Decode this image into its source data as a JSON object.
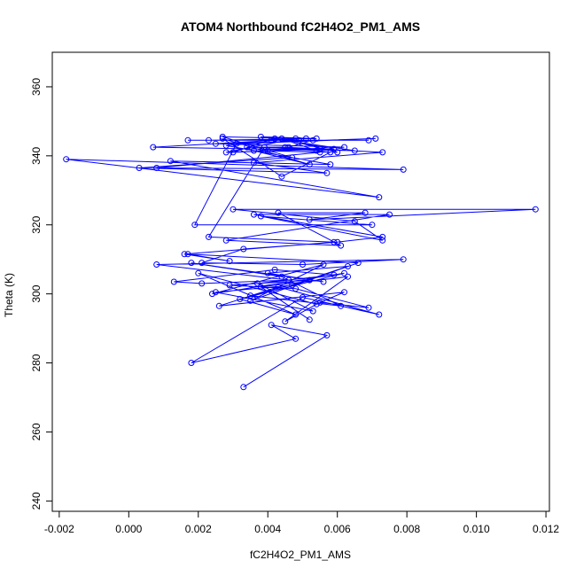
{
  "chart_data": {
    "type": "scatter",
    "title": "ATOM4 Northbound fC2H4O2_PM1_AMS",
    "xlabel": "fC2H4O2_PM1_AMS",
    "ylabel": "Theta (K)",
    "xlim": [
      -0.0022,
      0.0121
    ],
    "ylim": [
      237,
      370
    ],
    "xticks": [
      -0.002,
      0.0,
      0.002,
      0.004,
      0.006,
      0.008,
      0.01,
      0.012
    ],
    "xtick_labels": [
      "-0.002",
      "0.000",
      "0.002",
      "0.004",
      "0.006",
      "0.008",
      "0.010",
      "0.012"
    ],
    "yticks": [
      240,
      260,
      280,
      300,
      320,
      340,
      360
    ],
    "ytick_labels": [
      "240",
      "260",
      "280",
      "300",
      "320",
      "340",
      "360"
    ],
    "grid": false,
    "colors": {
      "series": "#0000ff",
      "frame": "#000000"
    },
    "series": [
      {
        "style": "points-and-lines",
        "points": [
          [
            0.0033,
            273.0
          ],
          [
            0.0057,
            288.0
          ],
          [
            0.0041,
            291.0
          ],
          [
            0.0048,
            287.0
          ],
          [
            0.0018,
            280.0
          ],
          [
            0.005,
            299.0
          ],
          [
            0.0072,
            294.0
          ],
          [
            0.0043,
            302.0
          ],
          [
            0.0026,
            296.5
          ],
          [
            0.0062,
            300.5
          ],
          [
            0.0055,
            297.5
          ],
          [
            0.0069,
            296.0
          ],
          [
            0.0048,
            301.5
          ],
          [
            0.0029,
            302.5
          ],
          [
            0.0052,
            304.0
          ],
          [
            0.0035,
            299.5
          ],
          [
            0.0061,
            296.5
          ],
          [
            0.0044,
            305.0
          ],
          [
            0.0018,
            309.0
          ],
          [
            0.0056,
            303.5
          ],
          [
            0.004,
            306.0
          ],
          [
            0.0063,
            308.0
          ],
          [
            0.0047,
            302.5
          ],
          [
            0.0025,
            300.5
          ],
          [
            0.0053,
            295.0
          ],
          [
            0.0037,
            303.0
          ],
          [
            0.0059,
            305.5
          ],
          [
            0.0042,
            307.0
          ],
          [
            0.0013,
            303.5
          ],
          [
            0.0021,
            303.0
          ],
          [
            0.0046,
            304.0
          ],
          [
            0.0008,
            308.5
          ],
          [
            0.0079,
            310.0
          ],
          [
            0.005,
            308.5
          ],
          [
            0.0021,
            309.0
          ],
          [
            0.0033,
            313.0
          ],
          [
            0.006,
            315.0
          ],
          [
            0.0073,
            316.5
          ],
          [
            0.0036,
            323.0
          ],
          [
            0.0075,
            323.0
          ],
          [
            0.0028,
            315.5
          ],
          [
            0.0061,
            314.0
          ],
          [
            0.0043,
            323.5
          ],
          [
            0.0068,
            323.5
          ],
          [
            0.0052,
            321.5
          ],
          [
            0.0117,
            324.5
          ],
          [
            0.003,
            324.5
          ],
          [
            0.0065,
            321.0
          ],
          [
            0.0073,
            315.5
          ],
          [
            0.0038,
            322.5
          ],
          [
            0.007,
            320.0
          ],
          [
            0.0019,
            320.0
          ],
          [
            0.0031,
            343.5
          ],
          [
            0.0071,
            345.0
          ],
          [
            0.0025,
            343.5
          ],
          [
            0.0062,
            342.5
          ],
          [
            0.004,
            341.5
          ],
          [
            0.0055,
            341.0
          ],
          [
            0.0008,
            336.5
          ],
          [
            0.0079,
            336.0
          ],
          [
            -0.0018,
            339.0
          ],
          [
            0.0072,
            328.0
          ],
          [
            0.0012,
            338.5
          ],
          [
            0.0058,
            337.5
          ],
          [
            0.0028,
            343.0
          ],
          [
            0.0049,
            344.5
          ],
          [
            0.0017,
            344.5
          ],
          [
            0.0069,
            344.5
          ],
          [
            0.0023,
            344.5
          ],
          [
            0.0054,
            345.0
          ],
          [
            0.0038,
            345.5
          ],
          [
            0.0065,
            341.5
          ],
          [
            0.0007,
            342.5
          ],
          [
            0.0051,
            345.0
          ],
          [
            0.0027,
            345.5
          ],
          [
            0.0047,
            339.5
          ],
          [
            0.0003,
            336.5
          ],
          [
            0.0057,
            335.0
          ],
          [
            0.0036,
            338.0
          ],
          [
            0.0073,
            341.0
          ],
          [
            0.0045,
            342.5
          ],
          [
            0.0034,
            342.5
          ],
          [
            0.0055,
            342.0
          ],
          [
            0.003,
            341.0
          ],
          [
            0.0042,
            345.0
          ],
          [
            0.0059,
            342.0
          ],
          [
            0.0028,
            341.0
          ],
          [
            0.0048,
            345.0
          ],
          [
            0.0041,
            344.5
          ],
          [
            0.0053,
            344.5
          ],
          [
            0.0046,
            342.5
          ],
          [
            0.0058,
            341.0
          ],
          [
            0.0044,
            334.0
          ],
          [
            0.0027,
            345.0
          ],
          [
            0.0052,
            337.5
          ],
          [
            0.0036,
            341.5
          ],
          [
            0.006,
            341.0
          ],
          [
            0.0044,
            345.0
          ],
          [
            0.0054,
            341.5
          ],
          [
            0.0039,
            342.5
          ],
          [
            0.0023,
            316.5
          ],
          [
            0.0059,
            315.0
          ],
          [
            0.0016,
            311.5
          ],
          [
            0.0029,
            309.5
          ],
          [
            0.0017,
            311.5
          ],
          [
            0.0066,
            309.0
          ],
          [
            0.0035,
            298.0
          ],
          [
            0.0056,
            308.5
          ],
          [
            0.0024,
            300.0
          ],
          [
            0.0062,
            306.0
          ],
          [
            0.0032,
            298.5
          ],
          [
            0.0048,
            294.0
          ],
          [
            0.002,
            306.0
          ],
          [
            0.0054,
            297.0
          ],
          [
            0.0045,
            292.0
          ],
          [
            0.0063,
            305.0
          ],
          [
            0.0038,
            302.0
          ],
          [
            0.0052,
            292.5
          ]
        ]
      }
    ]
  }
}
